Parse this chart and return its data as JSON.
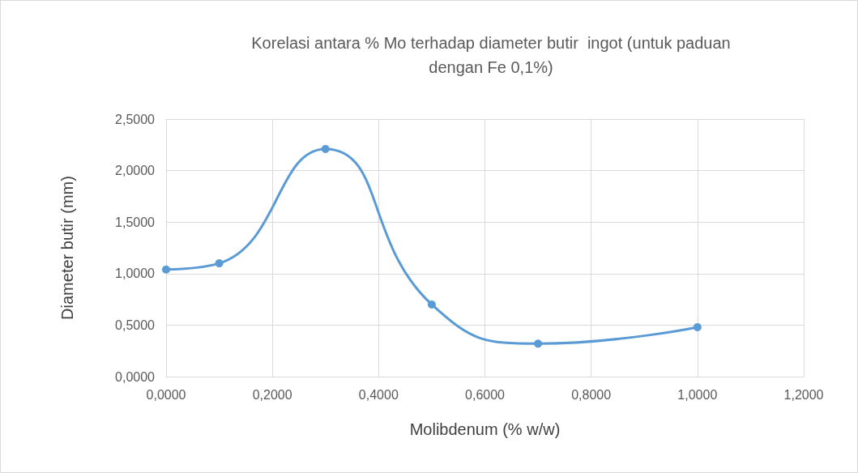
{
  "chart_data": {
    "type": "line",
    "title": "Korelasi antara % Mo terhadap diameter butir  ingot (untuk paduan\ndengan Fe 0,1%)",
    "xlabel": "Molibdenum (% w/w)",
    "ylabel": "Diameter butir (mm)",
    "x": [
      0,
      0.1,
      0.3,
      0.5,
      0.7,
      1.0
    ],
    "series": [
      {
        "color": "#5b9bd5",
        "values": [
          1.04,
          1.1,
          2.21,
          0.7,
          0.32,
          0.48
        ]
      }
    ],
    "xlim": [
      0,
      1.2
    ],
    "xticks": [
      {
        "value": 0,
        "label": "0,0000"
      },
      {
        "value": 0.2,
        "label": "0,2000"
      },
      {
        "value": 0.4,
        "label": "0,4000"
      },
      {
        "value": 0.6,
        "label": "0,6000"
      },
      {
        "value": 0.8,
        "label": "0,8000"
      },
      {
        "value": 1.0,
        "label": "1,0000"
      },
      {
        "value": 1.2,
        "label": "1,2000"
      }
    ],
    "ylim": [
      0,
      2.5
    ],
    "yticks": [
      {
        "value": 0,
        "label": "0,0000"
      },
      {
        "value": 0.5,
        "label": "0,5000"
      },
      {
        "value": 1.0,
        "label": "1,0000"
      },
      {
        "value": 1.5,
        "label": "1,5000"
      },
      {
        "value": 2.0,
        "label": "2,0000"
      },
      {
        "value": 2.5,
        "label": "2,5000"
      }
    ],
    "grid": true,
    "marker": "circle",
    "line_style": "solid"
  }
}
